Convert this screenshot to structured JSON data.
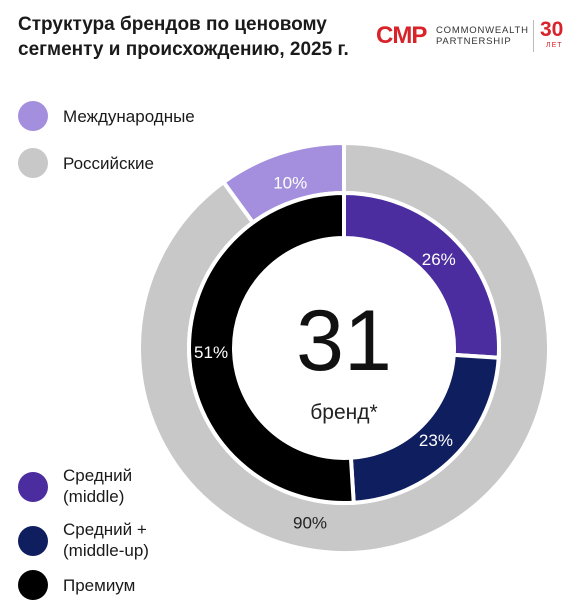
{
  "title": "Структура брендов по ценовому сегменту и происхождению, 2025 г.",
  "logo": {
    "mark": "CMP",
    "name_line1": "COMMONWEALTH",
    "name_line2": "PARTNERSHIP",
    "anniversary": "30",
    "anniversary_unit": "ЛЕТ",
    "color": "#d8232a"
  },
  "center": {
    "value": "31",
    "label": "бренд*"
  },
  "chart_data": [
    {
      "type": "pie",
      "ring": "outer",
      "title": "",
      "series": [
        {
          "name": "Международные",
          "value": 10,
          "label": "10%",
          "color": "#a48fde"
        },
        {
          "name": "Российские",
          "value": 90,
          "label": "90%",
          "color": "#c8c8c8"
        }
      ],
      "legend_position": "top-left"
    },
    {
      "type": "pie",
      "ring": "inner",
      "title": "",
      "series": [
        {
          "name": "Средний (middle)",
          "value": 26,
          "label": "26%",
          "color": "#4b2d9f"
        },
        {
          "name": "Средний + (middle-up)",
          "value": 23,
          "label": "23%",
          "color": "#0f1e5e"
        },
        {
          "name": "Премиум",
          "value": 51,
          "label": "51%",
          "color": "#000000"
        }
      ],
      "legend_position": "bottom-left"
    }
  ],
  "legend_top": [
    {
      "label": "Международные",
      "color": "#a48fde"
    },
    {
      "label": "Российские",
      "color": "#c8c8c8"
    }
  ],
  "legend_bottom": [
    {
      "label_line1": "Средний",
      "label_line2": "(middle)",
      "color": "#4b2d9f"
    },
    {
      "label_line1": "Средний +",
      "label_line2": "(middle-up)",
      "color": "#0f1e5e"
    },
    {
      "label_line1": "Премиум",
      "label_line2": "",
      "color": "#000000"
    }
  ]
}
